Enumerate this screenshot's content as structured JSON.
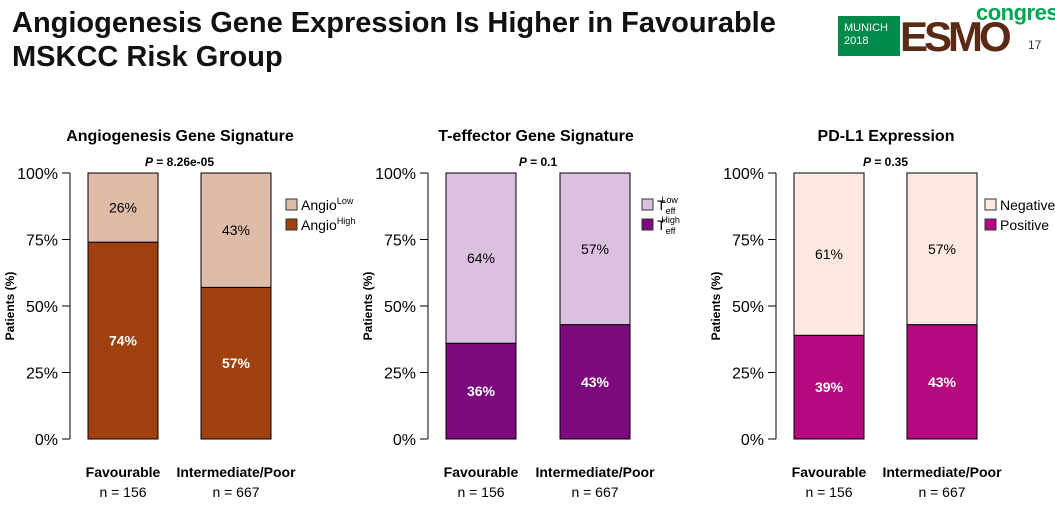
{
  "slide": {
    "title_line1": "Angiogenesis Gene Expression Is Higher in Favourable",
    "title_line2": "MSKCC Risk Group",
    "page_number": "17",
    "logo": {
      "city": "MUNICH",
      "year": "2018",
      "brand": "ESMO",
      "congress": "congress"
    }
  },
  "chart_data": [
    {
      "type": "bar",
      "stacked": true,
      "title": "Angiogenesis Gene Signature",
      "p_label": "P",
      "p_value": " = 8.26e-05",
      "ylabel": "Patients (%)",
      "ylim": [
        0,
        100
      ],
      "yticks": [
        "0%",
        "25%",
        "50%",
        "75%",
        "100%"
      ],
      "categories": [
        "Favourable",
        "Intermediate/Poor"
      ],
      "n_labels": [
        "n = 156",
        "n = 667"
      ],
      "series": [
        {
          "name": "High",
          "legend_base": "Angio",
          "legend_sup": "High",
          "legend_sub": "",
          "color": "#a0400f",
          "values": [
            74,
            57
          ],
          "labels": [
            "74%",
            "57%"
          ],
          "label_color": "#ffffff"
        },
        {
          "name": "Low",
          "legend_base": "Angio",
          "legend_sup": "Low",
          "legend_sub": "",
          "color": "#dfbca8",
          "values": [
            26,
            43
          ],
          "labels": [
            "26%",
            "43%"
          ],
          "label_color": "#000000"
        }
      ]
    },
    {
      "type": "bar",
      "stacked": true,
      "title": "T-effector Gene Signature",
      "p_label": "P",
      "p_value": " = 0.1",
      "ylabel": "Patients (%)",
      "ylim": [
        0,
        100
      ],
      "yticks": [
        "0%",
        "25%",
        "50%",
        "75%",
        "100%"
      ],
      "categories": [
        "Favourable",
        "Intermediate/Poor"
      ],
      "n_labels": [
        "n = 156",
        "n = 667"
      ],
      "series": [
        {
          "name": "High",
          "legend_base": "T",
          "legend_sup": "High",
          "legend_sub": "eff",
          "color": "#7b0a7d",
          "values": [
            36,
            43
          ],
          "labels": [
            "36%",
            "43%"
          ],
          "label_color": "#ffffff"
        },
        {
          "name": "Low",
          "legend_base": "T",
          "legend_sup": "Low",
          "legend_sub": "eff",
          "color": "#dcc0e0",
          "values": [
            64,
            57
          ],
          "labels": [
            "64%",
            "57%"
          ],
          "label_color": "#000000"
        }
      ]
    },
    {
      "type": "bar",
      "stacked": true,
      "title": "PD-L1 Expression",
      "p_label": "P",
      "p_value": " = 0.35",
      "ylabel": "Patients (%)",
      "ylim": [
        0,
        100
      ],
      "yticks": [
        "0%",
        "25%",
        "50%",
        "75%",
        "100%"
      ],
      "categories": [
        "Favourable",
        "Intermediate/Poor"
      ],
      "n_labels": [
        "n = 156",
        "n = 667"
      ],
      "series": [
        {
          "name": "Positive",
          "legend_base": "Positive",
          "legend_sup": "",
          "legend_sub": "",
          "color": "#b5097f",
          "values": [
            39,
            43
          ],
          "labels": [
            "39%",
            "43%"
          ],
          "label_color": "#ffffff"
        },
        {
          "name": "Negative",
          "legend_base": "Negative",
          "legend_sup": "",
          "legend_sub": "",
          "color": "#fde9df",
          "values": [
            61,
            57
          ],
          "labels": [
            "61%",
            "57%"
          ],
          "label_color": "#000000"
        }
      ]
    }
  ]
}
